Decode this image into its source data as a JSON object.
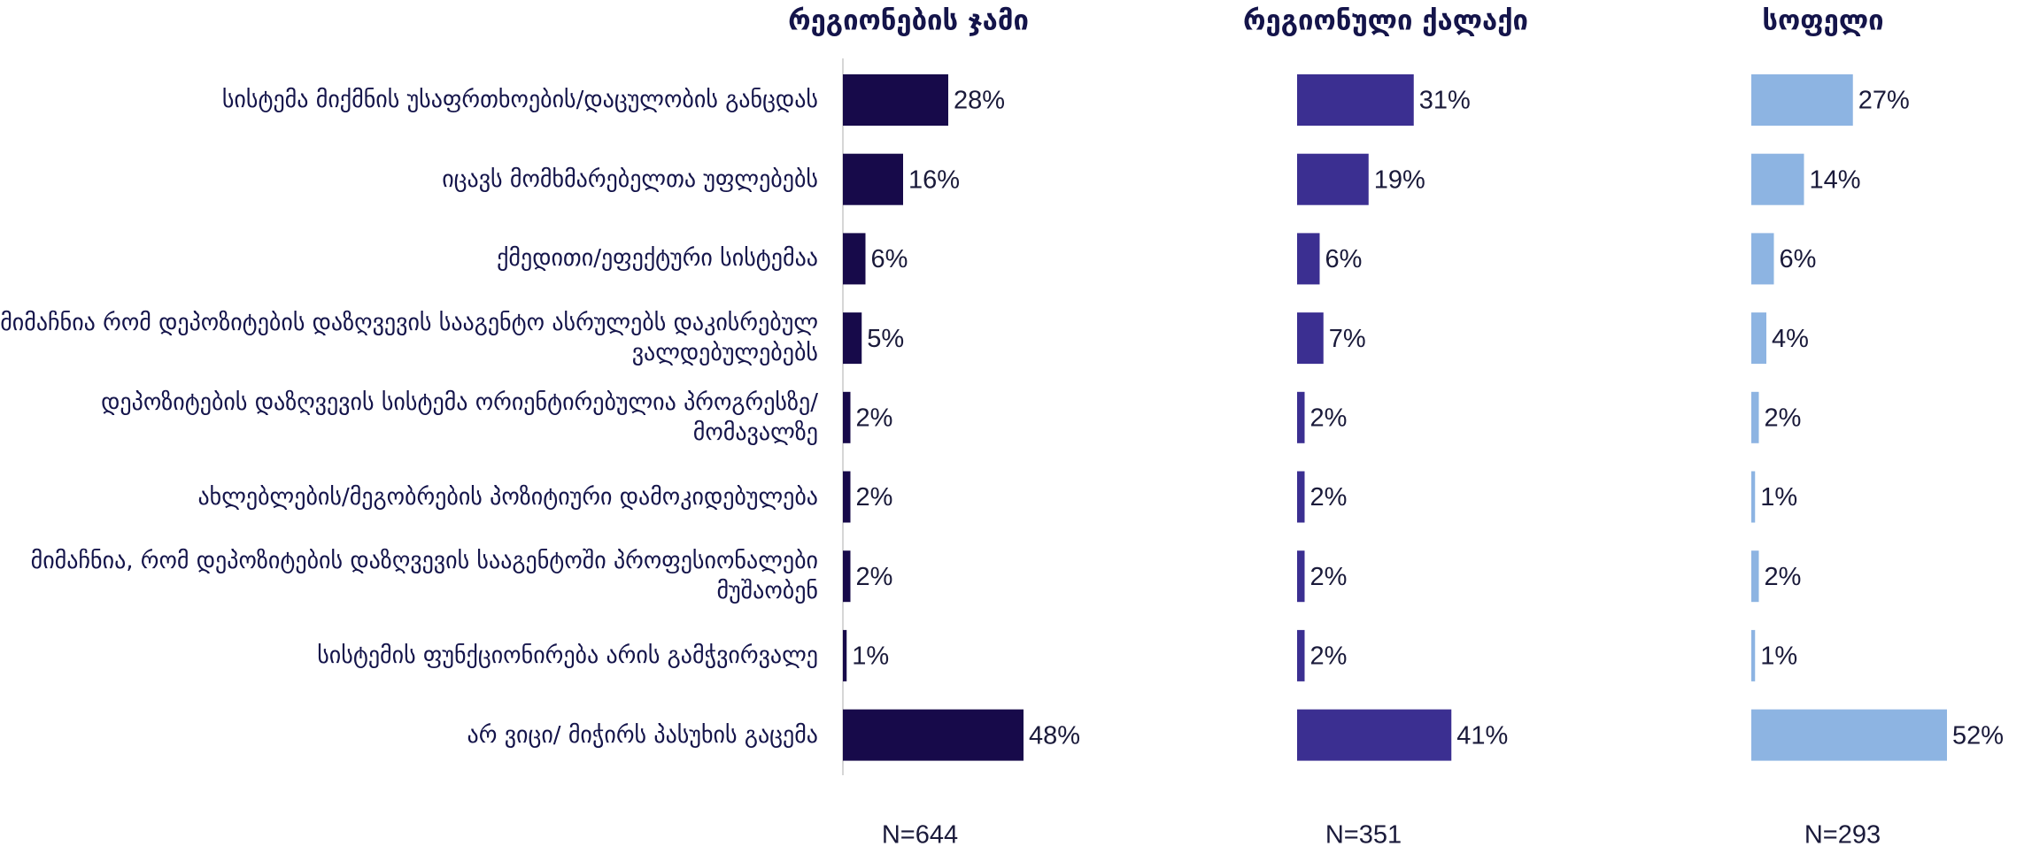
{
  "chart_data": {
    "type": "bar",
    "categories": [
      "სისტემა მიქმნის უსაფრთხოების/დაცულობის განცდას",
      "იცავს მომხმარებელთა უფლებებს",
      "ქმედითი/ეფექტური სისტემაა",
      "მიმაჩნია რომ  დეპოზიტების დაზღვევის სააგენტო ასრულებს დაკისრებულ ვალდებულებებს",
      "დეპოზიტების დაზღვევის სისტემა ორიენტირებულია პროგრესზე/მომავალზე",
      "ახლებლების/მეგობრების პოზიტიური დამოკიდებულება",
      "მიმაჩნია, რომ დეპოზიტების დაზღვევის სააგენტოში პროფესიონალები მუშაობენ",
      "სისტემის ფუნქციონირება არის გამჭვირვალე",
      "არ ვიცი/ მიჭირს პასუხის გაცემა"
    ],
    "series": [
      {
        "name": "რეგიონების ჯამი",
        "color": "#170a4a",
        "sample": "N=644",
        "values": [
          28,
          16,
          6,
          5,
          2,
          2,
          2,
          1,
          48
        ],
        "value_labels": [
          "28%",
          "16%",
          "6%",
          "5%",
          "2%",
          "2%",
          "2%",
          "1%",
          "48%"
        ]
      },
      {
        "name": "რეგიონული ქალაქი",
        "color": "#3b2f91",
        "sample": "N=351",
        "values": [
          31,
          19,
          6,
          7,
          2,
          2,
          2,
          2,
          41
        ],
        "value_labels": [
          "31%",
          "19%",
          "6%",
          "7%",
          "2%",
          "2%",
          "2%",
          "2%",
          "41%"
        ]
      },
      {
        "name": "სოფელი",
        "color": "#8db4e2",
        "sample": "N=293",
        "values": [
          27,
          14,
          6,
          4,
          2,
          1,
          2,
          1,
          52
        ],
        "value_labels": [
          "27%",
          "14%",
          "6%",
          "4%",
          "2%",
          "1%",
          "2%",
          "1%",
          "52%"
        ]
      }
    ]
  }
}
